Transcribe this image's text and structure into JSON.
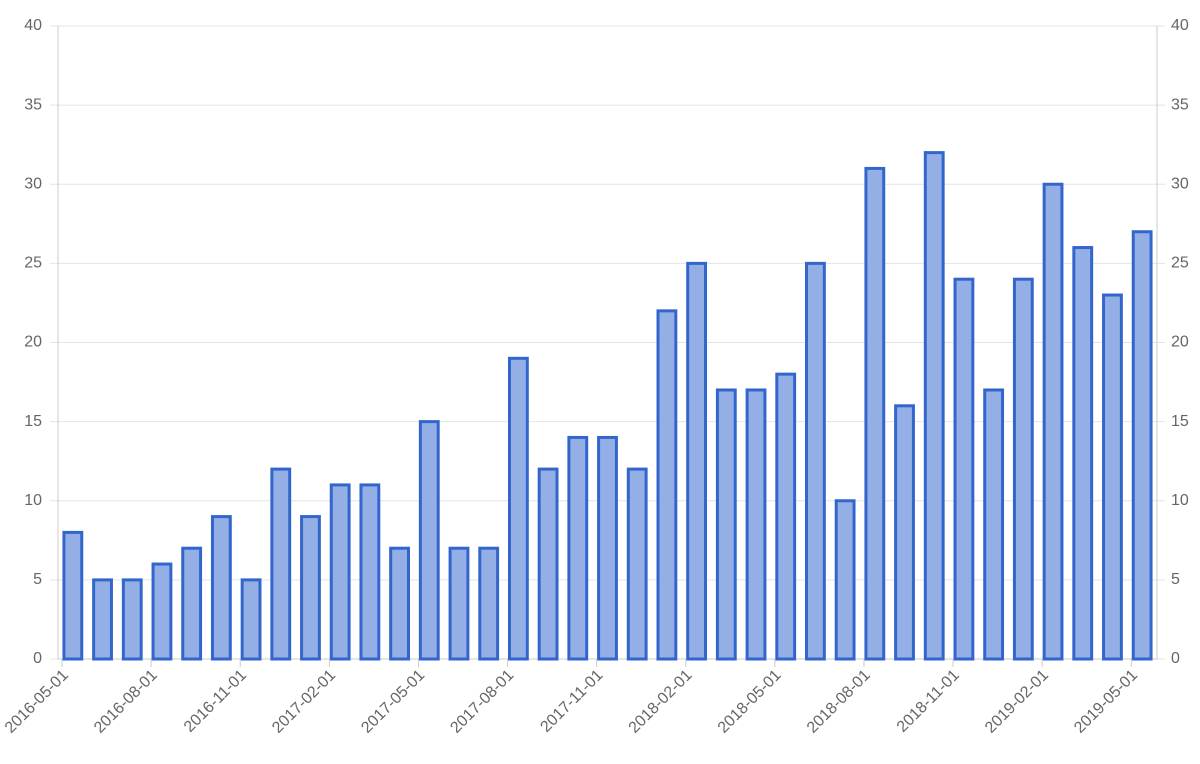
{
  "chart_data": {
    "type": "bar",
    "categories": [
      "2016-05-01",
      null,
      null,
      "2016-08-01",
      null,
      null,
      "2016-11-01",
      null,
      null,
      "2017-02-01",
      null,
      null,
      "2017-05-01",
      null,
      null,
      "2017-08-01",
      null,
      null,
      "2017-11-01",
      null,
      null,
      "2018-02-01",
      null,
      null,
      "2018-05-01",
      null,
      null,
      "2018-08-01",
      null,
      null,
      "2018-11-01",
      null,
      null,
      "2019-02-01",
      null,
      null,
      "2019-05-01"
    ],
    "values": [
      8,
      5,
      5,
      6,
      7,
      9,
      5,
      12,
      9,
      11,
      11,
      7,
      15,
      7,
      7,
      19,
      12,
      14,
      14,
      12,
      22,
      25,
      17,
      17,
      18,
      25,
      10,
      31,
      16,
      32,
      24,
      17,
      24,
      30,
      26,
      23,
      27
    ],
    "color": "#94aee6",
    "border_color": "#3366cc",
    "ylim": [
      0,
      40
    ],
    "yticks": [
      0,
      5,
      10,
      15,
      20,
      25,
      30,
      35,
      40
    ],
    "y2lim": [
      0,
      40
    ],
    "y2ticks": [
      0,
      5,
      10,
      15,
      20,
      25,
      30,
      35,
      40
    ],
    "grid": true
  }
}
